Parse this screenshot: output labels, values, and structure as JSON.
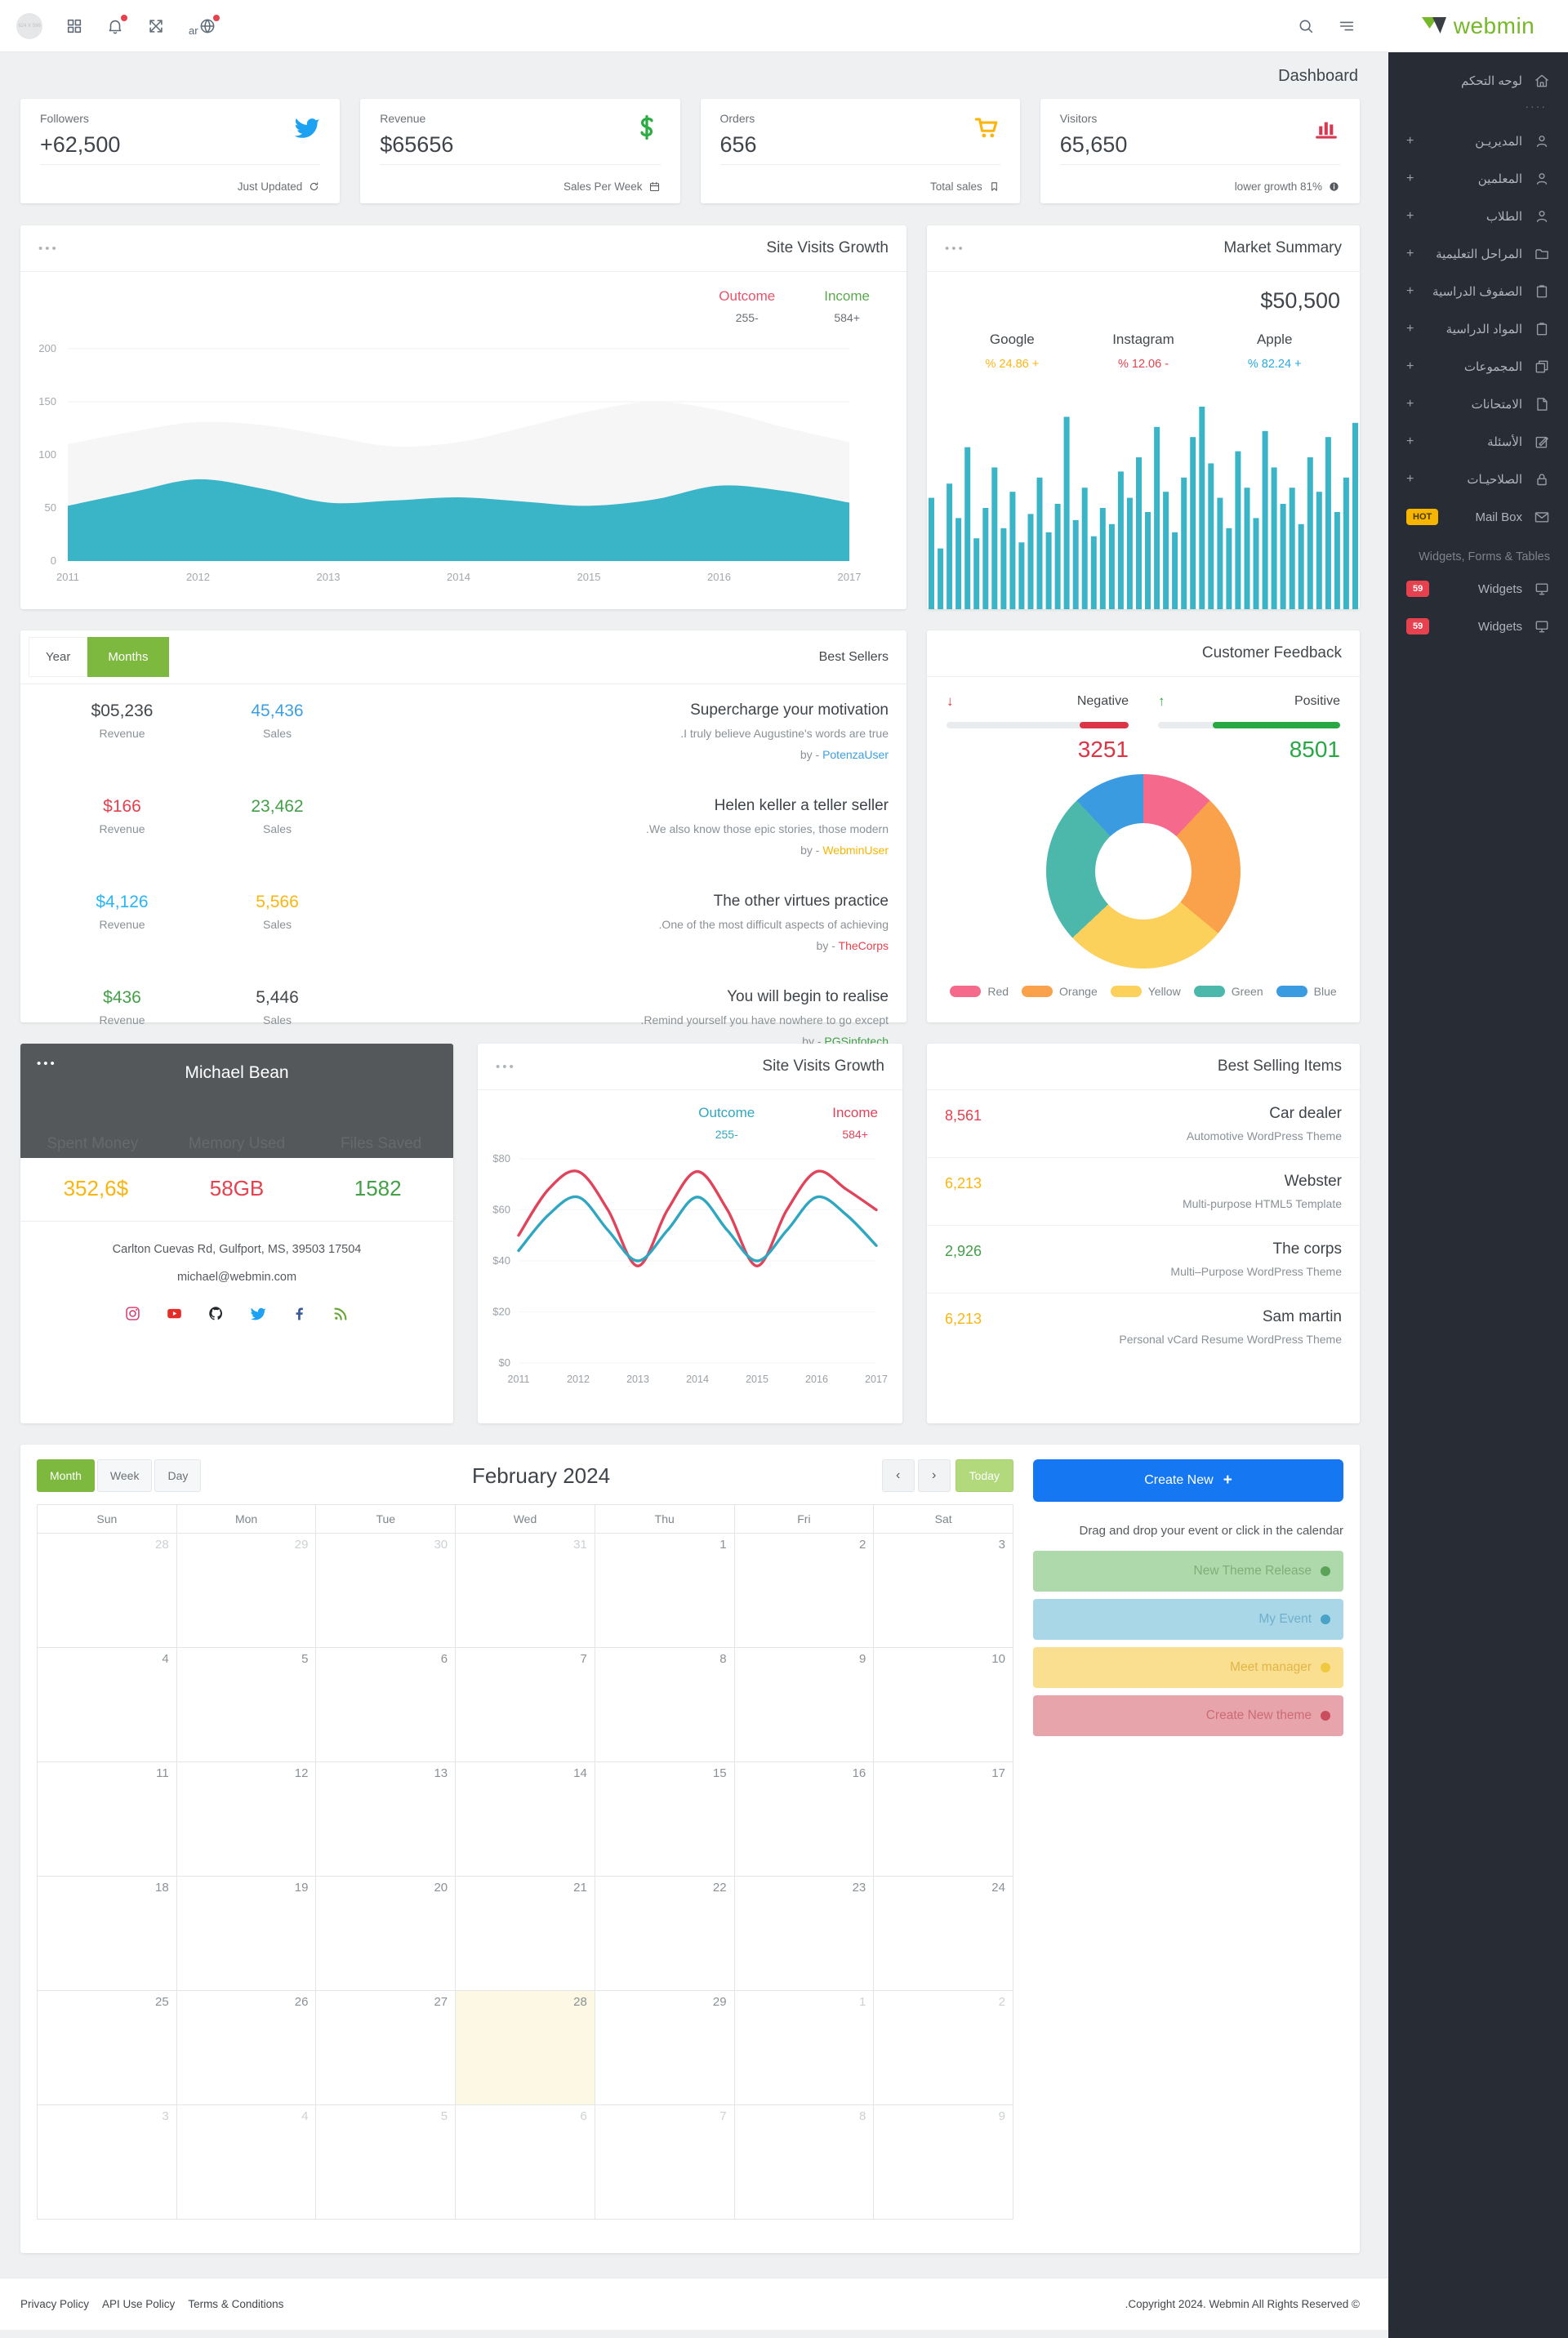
{
  "brand": "webmin",
  "page_title": "Dashboard",
  "navbar": {
    "avatar_text": "624 X 596",
    "lang": "ar",
    "icons": [
      "grid-icon",
      "bell-icon",
      "expand-icon",
      "globe-icon",
      "search-icon",
      "menu-icon"
    ]
  },
  "sidebar": {
    "items": [
      {
        "label": "لوحه التحكم",
        "icon": "home"
      },
      {
        "divider": "····"
      },
      {
        "label": "المديريـن",
        "icon": "user",
        "plus": "+"
      },
      {
        "label": "المعلمين",
        "icon": "user",
        "plus": "+"
      },
      {
        "label": "الطلاب",
        "icon": "user",
        "plus": "+"
      },
      {
        "label": "المراحل التعليمية",
        "icon": "folder",
        "plus": "+"
      },
      {
        "label": "الصفوف الدراسية",
        "icon": "clipboard",
        "plus": "+"
      },
      {
        "label": "المواد الدراسية",
        "icon": "clipboard",
        "plus": "+"
      },
      {
        "label": "المجموعات",
        "icon": "copy",
        "plus": "+"
      },
      {
        "label": "الامتحانات",
        "icon": "file",
        "plus": "+"
      },
      {
        "label": "الأسئلة",
        "icon": "edit",
        "plus": "+"
      },
      {
        "label": "الصلاحيـات",
        "icon": "lock",
        "plus": "+"
      },
      {
        "label": "Mail Box",
        "icon": "mail",
        "badge": "HOT",
        "badge_bg": "#f7b500",
        "badge_fg": "#463a05"
      },
      {
        "section": "Widgets, Forms & Tables"
      },
      {
        "label": "Widgets",
        "icon": "monitor",
        "badge": "59",
        "badge_bg": "#e5414e",
        "badge_fg": "#ffffff"
      },
      {
        "label": "Widgets",
        "icon": "monitor",
        "badge": "59",
        "badge_bg": "#e5414e",
        "badge_fg": "#ffffff"
      }
    ]
  },
  "stat_cards": [
    {
      "label": "Followers",
      "value": "+62,500",
      "icon": "twitter",
      "icon_color": "#1da1f2",
      "footer": "Just Updated",
      "footer_icon": "refresh"
    },
    {
      "label": "Revenue",
      "value": "$65656",
      "icon": "dollar",
      "icon_color": "#2eac44",
      "footer": "Sales Per Week",
      "footer_icon": "calendar"
    },
    {
      "label": "Orders",
      "value": "656",
      "icon": "cart",
      "icon_color": "#fbb50f",
      "footer": "Total sales",
      "footer_icon": "bookmark"
    },
    {
      "label": "Visitors",
      "value": "65,650",
      "icon": "chart-bars",
      "icon_color": "#d63a52",
      "footer": "lower growth 81%",
      "footer_icon": "info"
    }
  ],
  "site_visits_1": {
    "menu": "•••",
    "title": "Site Visits Growth",
    "legend": [
      {
        "label": "Outcome",
        "value": "255-",
        "label_color": "#e8526b",
        "value_color": "#6a7075"
      },
      {
        "label": "Income",
        "value": "584+",
        "label_color": "#5aa94d",
        "value_color": "#6a7075"
      }
    ]
  },
  "market_summary": {
    "menu": "•••",
    "title": "Market Summary",
    "total": "$50,500",
    "entries": [
      {
        "name": "Google",
        "value": "% 24.86 +",
        "color": "#fbb50f"
      },
      {
        "name": "Instagram",
        "value": "% 12.06 -",
        "color": "#e5414e"
      },
      {
        "name": "Apple",
        "value": "% 82.24 +",
        "color": "#29a9e0"
      }
    ]
  },
  "best_sellers": {
    "title": "Best Sellers",
    "toggle": [
      {
        "label": "Year",
        "active": false
      },
      {
        "label": "Months",
        "active": true
      }
    ],
    "revenue_caption": "Revenue",
    "sales_caption": "Sales",
    "rows": [
      {
        "revenue": "$05,236",
        "revenue_color": "#43484d",
        "sales": "45,436",
        "sales_color": "#3d9fe0",
        "title": "Supercharge your motivation",
        "subtitle": ".I truly believe Augustine's words are true",
        "by": "by -",
        "author": "PotenzaUser",
        "author_color": "#3d9fe0"
      },
      {
        "revenue": "$166",
        "revenue_color": "#e5414e",
        "sales": "23,462",
        "sales_color": "#43a047",
        "title": "Helen keller a teller seller",
        "subtitle": ".We also know those epic stories, those modern",
        "by": "by -",
        "author": "WebminUser",
        "author_color": "#f7b500"
      },
      {
        "revenue": "$4,126",
        "revenue_color": "#29b6f6",
        "sales": "5,566",
        "sales_color": "#fbb50f",
        "title": "The other virtues practice",
        "subtitle": ".One of the most difficult aspects of achieving",
        "by": "by -",
        "author": "TheCorps",
        "author_color": "#e5414e"
      },
      {
        "revenue": "$436",
        "revenue_color": "#43a047",
        "sales": "5,446",
        "sales_color": "#43484d",
        "title": "You will begin to realise",
        "subtitle": ".Remind yourself you have nowhere to go except",
        "by": "by -",
        "author": "PGSinfotech",
        "author_color": "#43a047"
      }
    ]
  },
  "customer_feedback": {
    "title": "Customer Feedback",
    "negative": {
      "label": "Negative",
      "arrow": "↓",
      "value": "3251",
      "pct": 27,
      "color": "#dc3545"
    },
    "positive": {
      "label": "Positive",
      "arrow": "↑",
      "value": "8501",
      "pct": 70,
      "color": "#28a745"
    }
  },
  "profile": {
    "menu": "•••",
    "name": "Michael Bean",
    "stats": [
      {
        "label": "Spent Money",
        "value": "352,6$",
        "color": "#fbb50f"
      },
      {
        "label": "Memory Used",
        "value": "58GB",
        "color": "#e5414e"
      },
      {
        "label": "Files Saved",
        "value": "1582",
        "color": "#43a047"
      }
    ],
    "address": "Carlton Cuevas Rd, Gulfport, MS, 39503 17504",
    "email": "michael@webmin.com",
    "socials": [
      {
        "icon": "instagram",
        "color": "#d6366c"
      },
      {
        "icon": "youtube",
        "color": "#e52d27"
      },
      {
        "icon": "github",
        "color": "#24292e"
      },
      {
        "icon": "twitter",
        "color": "#1da1f2"
      },
      {
        "icon": "facebook",
        "color": "#3b5998"
      },
      {
        "icon": "rss",
        "color": "#6ba43a"
      }
    ]
  },
  "site_visits_2": {
    "menu": "•••",
    "title": "Site Visits Growth",
    "legend": [
      {
        "label": "Outcome",
        "value": "255-",
        "label_color": "#2fa7c0",
        "value_color": "#2fa7c0"
      },
      {
        "label": "Income",
        "value": "584+",
        "label_color": "#e0435a",
        "value_color": "#e0435a"
      }
    ]
  },
  "best_selling_items": {
    "title": "Best Selling Items",
    "rows": [
      {
        "value": "8,561",
        "color": "#e5414e",
        "name": "Car dealer",
        "desc": "Automotive WordPress Theme"
      },
      {
        "value": "6,213",
        "color": "#fbb50f",
        "name": "Webster",
        "desc": "Multi-purpose HTML5 Template"
      },
      {
        "value": "2,926",
        "color": "#43a047",
        "name": "The corps",
        "desc": "Multi–Purpose WordPress Theme"
      },
      {
        "value": "6,213",
        "color": "#fbb50f",
        "name": "Sam martin",
        "desc": "Personal vCard Resume WordPress Theme"
      }
    ]
  },
  "calendar": {
    "views": [
      {
        "label": "Month",
        "active": true
      },
      {
        "label": "Week",
        "active": false
      },
      {
        "label": "Day",
        "active": false
      }
    ],
    "title": "February 2024",
    "prev": "‹",
    "next": "›",
    "today_label": "Today",
    "day_headers": [
      "Sun",
      "Mon",
      "Tue",
      "Wed",
      "Thu",
      "Fri",
      "Sat"
    ],
    "weeks": [
      [
        {
          "day": 28,
          "out": true
        },
        {
          "day": 29,
          "out": true
        },
        {
          "day": 30,
          "out": true
        },
        {
          "day": 31,
          "out": true
        },
        {
          "day": 1
        },
        {
          "day": 2
        },
        {
          "day": 3
        }
      ],
      [
        {
          "day": 4
        },
        {
          "day": 5
        },
        {
          "day": 6
        },
        {
          "day": 7
        },
        {
          "day": 8
        },
        {
          "day": 9
        },
        {
          "day": 10
        }
      ],
      [
        {
          "day": 11
        },
        {
          "day": 12
        },
        {
          "day": 13
        },
        {
          "day": 14
        },
        {
          "day": 15
        },
        {
          "day": 16
        },
        {
          "day": 17
        }
      ],
      [
        {
          "day": 18
        },
        {
          "day": 19
        },
        {
          "day": 20
        },
        {
          "day": 21
        },
        {
          "day": 22
        },
        {
          "day": 23
        },
        {
          "day": 24
        }
      ],
      [
        {
          "day": 25
        },
        {
          "day": 26
        },
        {
          "day": 27
        },
        {
          "day": 28,
          "today": true
        },
        {
          "day": 29
        },
        {
          "day": 1,
          "out": true
        },
        {
          "day": 2,
          "out": true
        }
      ],
      [
        {
          "day": 3,
          "out": true
        },
        {
          "day": 4,
          "out": true
        },
        {
          "day": 5,
          "out": true
        },
        {
          "day": 6,
          "out": true
        },
        {
          "day": 7,
          "out": true
        },
        {
          "day": 8,
          "out": true
        },
        {
          "day": 9,
          "out": true
        }
      ]
    ],
    "panel": {
      "create_label": "Create New",
      "create_plus": "+",
      "create_bg": "#1578f2",
      "drag_hint": "Drag and drop your event or click in the calendar",
      "events": [
        {
          "label": "New Theme Release",
          "bg": "#aed9ab",
          "text": "#7fae7c",
          "dot": "#5ba357"
        },
        {
          "label": "My Event",
          "bg": "#a9d7e8",
          "text": "#6fb1cb",
          "dot": "#4aa3c7"
        },
        {
          "label": "Meet manager",
          "bg": "#fbdf91",
          "text": "#dfb548",
          "dot": "#efc93f"
        },
        {
          "label": "Create New theme",
          "bg": "#e8a4ab",
          "text": "#cb6b76",
          "dot": "#c94d5c"
        }
      ]
    }
  },
  "footer": {
    "links": [
      "Privacy Policy",
      "API Use Policy",
      "Terms & Conditions"
    ],
    "copyright": ".Copyright 2024. Webmin All Rights Reserved ©"
  },
  "chart_data": [
    {
      "id": "site-visits-area",
      "type": "area",
      "title": "Site Visits Growth",
      "x": [
        2011,
        2011.5,
        2012,
        2012.5,
        2013,
        2013.5,
        2014,
        2014.5,
        2015,
        2015.5,
        2016,
        2016.5,
        2017
      ],
      "series": [
        {
          "name": "Income",
          "color": "#f6f6f7",
          "values": [
            110,
            122,
            131,
            128,
            118,
            108,
            112,
            126,
            141,
            150,
            142,
            126,
            112
          ]
        },
        {
          "name": "Outcome",
          "color": "#3ab4c7",
          "values": [
            52,
            65,
            77,
            68,
            55,
            57,
            60,
            56,
            52,
            58,
            71,
            66,
            55
          ]
        }
      ],
      "ylim": [
        0,
        200
      ],
      "yticks": [
        200,
        150,
        100,
        50,
        0
      ],
      "xticks": [
        2011,
        2012,
        2013,
        2014,
        2015,
        2016,
        2017
      ],
      "legend_position": "top-right"
    },
    {
      "id": "market-bars",
      "type": "bar",
      "title": "Market Summary",
      "color": "#3ab5c8",
      "ylim": [
        0,
        100
      ],
      "values": [
        55,
        30,
        62,
        45,
        80,
        35,
        50,
        70,
        40,
        58,
        33,
        47,
        65,
        38,
        52,
        95,
        44,
        60,
        36,
        50,
        42,
        68,
        55,
        75,
        48,
        90,
        58,
        38,
        65,
        85,
        100,
        72,
        55,
        40,
        78,
        60,
        45,
        88,
        70,
        52,
        60,
        42,
        75,
        58,
        85,
        48,
        65,
        92
      ]
    },
    {
      "id": "feedback-donut",
      "type": "pie",
      "title": "Customer Feedback",
      "labels": [
        "Red",
        "Orange",
        "Yellow",
        "Green",
        "Blue"
      ],
      "values": [
        12,
        24,
        27,
        25,
        12
      ],
      "colors": [
        "#f4698c",
        "#f9a14b",
        "#fbd05b",
        "#4cb8ac",
        "#3b9be0"
      ],
      "legend_position": "bottom"
    },
    {
      "id": "site-visits-lines",
      "type": "line",
      "title": "Site Visits Growth",
      "x": [
        2011,
        2011.5,
        2012,
        2012.5,
        2013,
        2013.5,
        2014,
        2014.5,
        2015,
        2015.5,
        2016,
        2016.5,
        2017
      ],
      "series": [
        {
          "name": "Income",
          "color": "#e0435a",
          "values": [
            50,
            68,
            75,
            60,
            38,
            60,
            75,
            60,
            38,
            60,
            75,
            68,
            60
          ]
        },
        {
          "name": "Outcome",
          "color": "#2fa7c0",
          "values": [
            44,
            58,
            65,
            52,
            40,
            52,
            65,
            52,
            40,
            52,
            65,
            58,
            46
          ]
        }
      ],
      "ylim": [
        0,
        80
      ],
      "yticks": [
        "$80",
        "$60",
        "$40",
        "$20",
        "$0"
      ],
      "xticks": [
        2011,
        2012,
        2013,
        2014,
        2015,
        2016,
        2017
      ]
    }
  ]
}
